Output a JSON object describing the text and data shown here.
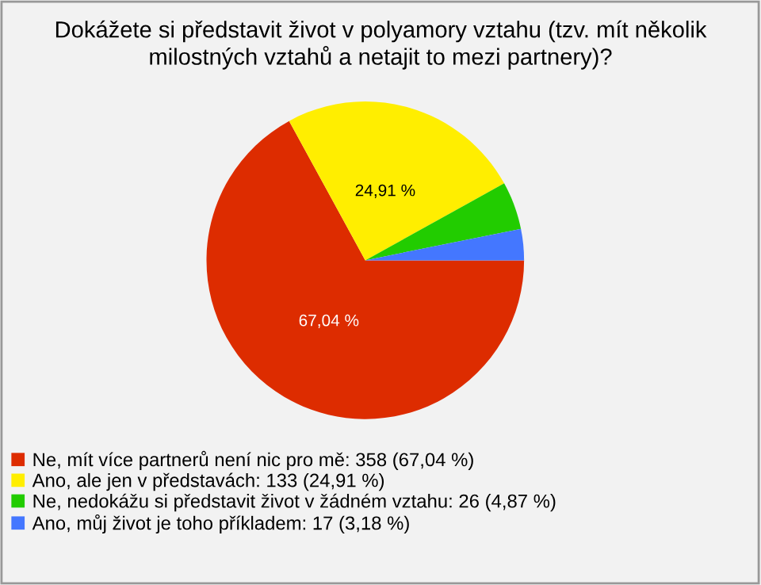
{
  "chart_data": {
    "type": "pie",
    "title": "Dokážete si představit život v polyamory vztahu (tzv. mít několik milostných vztahů a netajit to mezi partnery)?",
    "categories": [
      "Ne, mít více partnerů není nic pro mě: 358 (67,04 %)",
      "Ano, ale jen v představách: 133 (24,91 %)",
      "Ne, nedokážu si představit život v žádném vztahu: 26 (4,87 %)",
      "Ano, můj život je toho příkladem: 17 (3,18 %)"
    ],
    "values": [
      67.04,
      24.91,
      4.87,
      3.18
    ],
    "value_labels": [
      "67,04 %",
      "24,91 %",
      null,
      null
    ],
    "colors": [
      "#dd2c00",
      "#ffee00",
      "#22cc00",
      "#4477ff"
    ],
    "legend": "bottom"
  }
}
